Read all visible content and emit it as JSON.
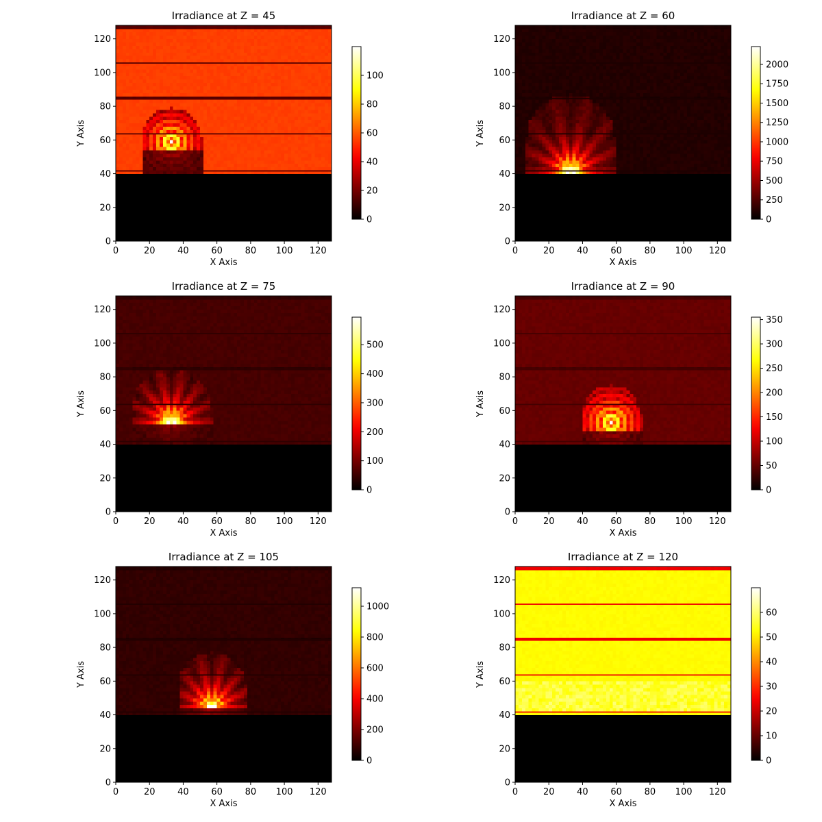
{
  "chart_data": [
    {
      "type": "heatmap",
      "title": "Irradiance at Z = 45",
      "xlabel": "X Axis",
      "ylabel": "Y Axis",
      "xlim": [
        0,
        128
      ],
      "ylim": [
        0,
        128
      ],
      "xticks": [
        0,
        20,
        40,
        60,
        80,
        100,
        120
      ],
      "yticks": [
        0,
        20,
        40,
        60,
        80,
        100,
        120
      ],
      "colormap": "hot",
      "colorbar": {
        "min": 0,
        "max": 120,
        "ticks": [
          0,
          20,
          40,
          60,
          80,
          100
        ]
      },
      "background_value": 55,
      "background_y_range": [
        40,
        127
      ],
      "dark_region_y_range": [
        0,
        39
      ],
      "dark_lines_y": [
        41,
        63,
        84,
        105,
        126
      ],
      "dark_line_value": 15,
      "dome": {
        "cx": 32,
        "x_range": [
          15,
          50
        ],
        "top_y": 78,
        "peak_y": 58,
        "peak_value": 115,
        "pattern": "rings"
      }
    },
    {
      "type": "heatmap",
      "title": "Irradiance at Z = 60",
      "xlabel": "X Axis",
      "ylabel": "Y Axis",
      "xlim": [
        0,
        128
      ],
      "ylim": [
        0,
        128
      ],
      "xticks": [
        0,
        20,
        40,
        60,
        80,
        100,
        120
      ],
      "yticks": [
        0,
        20,
        40,
        60,
        80,
        100,
        120
      ],
      "colormap": "hot",
      "colorbar": {
        "min": 0,
        "max": 2230,
        "ticks": [
          0,
          250,
          500,
          750,
          1000,
          1250,
          1500,
          1750,
          2000
        ]
      },
      "background_value": 110,
      "background_y_range": [
        40,
        127
      ],
      "dark_region_y_range": [
        0,
        39
      ],
      "dark_lines_y": [
        41,
        63,
        84,
        105,
        126
      ],
      "dark_line_value": 90,
      "dome": {
        "cx": 32,
        "x_range": [
          6,
          58
        ],
        "top_y": 86,
        "peak_y": 41,
        "peak_value": 2200,
        "pattern": "fan"
      }
    },
    {
      "type": "heatmap",
      "title": "Irradiance at Z = 75",
      "xlabel": "X Axis",
      "ylabel": "Y Axis",
      "xlim": [
        0,
        128
      ],
      "ylim": [
        0,
        128
      ],
      "xticks": [
        0,
        20,
        40,
        60,
        80,
        100,
        120
      ],
      "yticks": [
        0,
        20,
        40,
        60,
        80,
        100,
        120
      ],
      "colormap": "hot",
      "colorbar": {
        "min": 0,
        "max": 595,
        "ticks": [
          0,
          100,
          200,
          300,
          400,
          500
        ]
      },
      "background_value": 60,
      "background_y_range": [
        40,
        127
      ],
      "dark_region_y_range": [
        0,
        39
      ],
      "dark_lines_y": [
        41,
        63,
        84,
        105,
        126
      ],
      "dark_line_value": 40,
      "dome": {
        "cx": 32,
        "x_range": [
          9,
          56
        ],
        "top_y": 84,
        "peak_y": 53,
        "peak_value": 560,
        "pattern": "fan"
      }
    },
    {
      "type": "heatmap",
      "title": "Irradiance at Z = 90",
      "xlabel": "X Axis",
      "ylabel": "Y Axis",
      "xlim": [
        0,
        128
      ],
      "ylim": [
        0,
        128
      ],
      "xticks": [
        0,
        20,
        40,
        60,
        80,
        100,
        120
      ],
      "yticks": [
        0,
        20,
        40,
        60,
        80,
        100,
        120
      ],
      "colormap": "hot",
      "colorbar": {
        "min": 0,
        "max": 355,
        "ticks": [
          0,
          50,
          100,
          150,
          200,
          250,
          300,
          350
        ]
      },
      "background_value": 52,
      "background_y_range": [
        40,
        127
      ],
      "dark_region_y_range": [
        0,
        39
      ],
      "dark_lines_y": [
        41,
        63,
        84,
        105,
        126
      ],
      "dark_line_value": 35,
      "dome": {
        "cx": 56,
        "x_range": [
          39,
          74
        ],
        "top_y": 74,
        "peak_y": 52,
        "peak_value": 340,
        "pattern": "rings"
      }
    },
    {
      "type": "heatmap",
      "title": "Irradiance at Z = 105",
      "xlabel": "X Axis",
      "ylabel": "Y Axis",
      "xlim": [
        0,
        128
      ],
      "ylim": [
        0,
        128
      ],
      "xticks": [
        0,
        20,
        40,
        60,
        80,
        100,
        120
      ],
      "yticks": [
        0,
        20,
        40,
        60,
        80,
        100,
        120
      ],
      "colormap": "hot",
      "colorbar": {
        "min": 0,
        "max": 1120,
        "ticks": [
          0,
          200,
          400,
          600,
          800,
          1000
        ]
      },
      "background_value": 80,
      "background_y_range": [
        40,
        127
      ],
      "dark_region_y_range": [
        0,
        39
      ],
      "dark_lines_y": [
        41,
        63,
        84,
        105,
        126
      ],
      "dark_line_value": 55,
      "dome": {
        "cx": 56,
        "x_range": [
          37,
          76
        ],
        "top_y": 76,
        "peak_y": 44,
        "peak_value": 1050,
        "pattern": "fan"
      }
    },
    {
      "type": "heatmap",
      "title": "Irradiance at Z = 120",
      "xlabel": "X Axis",
      "ylabel": "Y Axis",
      "xlim": [
        0,
        128
      ],
      "ylim": [
        0,
        128
      ],
      "xticks": [
        0,
        20,
        40,
        60,
        80,
        100,
        120
      ],
      "yticks": [
        0,
        20,
        40,
        60,
        80,
        100,
        120
      ],
      "colormap": "hot",
      "colorbar": {
        "min": 0,
        "max": 70,
        "ticks": [
          0,
          10,
          20,
          30,
          40,
          50,
          60
        ]
      },
      "background_value": 52,
      "background_y_range": [
        40,
        127
      ],
      "dark_region_y_range": [
        0,
        39
      ],
      "dark_lines_y": [
        41,
        63,
        84,
        105,
        126
      ],
      "dark_line_value": 24,
      "dome": null
    }
  ]
}
